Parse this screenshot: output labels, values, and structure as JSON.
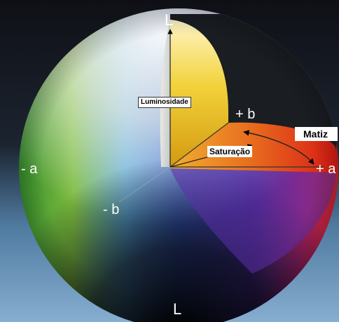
{
  "diagram": {
    "axis_labels": {
      "l_top": "L",
      "l_bottom": "L",
      "plus_b": "+ b",
      "minus_b": "- b",
      "minus_a": "- a",
      "plus_a": "+ a"
    },
    "annotations": {
      "luminosidade": "Luminosidade",
      "saturacao": "Saturação",
      "matiz": "Matiz"
    },
    "colors": {
      "background_top": "#12131a",
      "background_bottom": "#6f9bc0",
      "red": "#e2231a",
      "yellow": "#e8c400",
      "green": "#3f9a2c",
      "blue": "#2a4fbf",
      "violet": "#4a2f9e",
      "white": "#f4f3ee"
    }
  }
}
